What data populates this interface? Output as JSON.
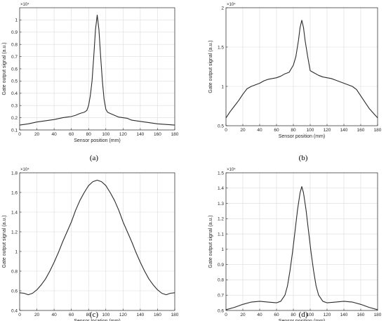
{
  "chart_data": [
    {
      "type": "line",
      "caption": "(a)",
      "xlabel": "Sensor position (mm)",
      "ylabel": "Gate output signal (a.u.)",
      "multiplier": "×10⁴",
      "xlim": [
        0,
        180
      ],
      "ylim": [
        0.1,
        1.1
      ],
      "xticks": [
        "0",
        "20",
        "40",
        "60",
        "80",
        "100",
        "120",
        "140",
        "160",
        "180"
      ],
      "yticks": [
        "0.1",
        "0.2",
        "0.3",
        "0.4",
        "0.5",
        "0.6",
        "0.7",
        "0.8",
        "0.9",
        "1"
      ],
      "grid": true,
      "x": [
        0,
        10,
        20,
        30,
        40,
        50,
        55,
        60,
        65,
        70,
        75,
        78,
        80,
        82,
        84,
        86,
        88,
        90,
        92,
        94,
        96,
        98,
        100,
        102,
        105,
        110,
        115,
        120,
        125,
        130,
        140,
        150,
        160,
        170,
        180
      ],
      "y": [
        0.14,
        0.15,
        0.165,
        0.175,
        0.185,
        0.2,
        0.205,
        0.21,
        0.22,
        0.235,
        0.245,
        0.26,
        0.3,
        0.38,
        0.5,
        0.7,
        0.92,
        1.04,
        0.92,
        0.7,
        0.5,
        0.35,
        0.27,
        0.245,
        0.235,
        0.22,
        0.205,
        0.2,
        0.195,
        0.18,
        0.17,
        0.16,
        0.15,
        0.145,
        0.14
      ]
    },
    {
      "type": "line",
      "caption": "(b)",
      "xlabel": "Sensor position (mm)",
      "ylabel": "Gate output signal (a.u.)",
      "multiplier": "×10⁴",
      "xlim": [
        0,
        180
      ],
      "ylim": [
        0.5,
        2
      ],
      "xticks": [
        "0",
        "20",
        "40",
        "60",
        "80",
        "100",
        "120",
        "140",
        "160",
        "180"
      ],
      "yticks": [
        "0.5",
        "1",
        "1.5",
        "2"
      ],
      "grid": true,
      "x": [
        0,
        5,
        10,
        15,
        20,
        25,
        30,
        35,
        40,
        45,
        50,
        55,
        60,
        65,
        70,
        75,
        80,
        83,
        86,
        88,
        90,
        92,
        94,
        97,
        100,
        105,
        110,
        115,
        120,
        125,
        130,
        135,
        140,
        145,
        150,
        155,
        160,
        165,
        170,
        175,
        180
      ],
      "y": [
        0.6,
        0.68,
        0.75,
        0.82,
        0.9,
        0.97,
        1.0,
        1.02,
        1.04,
        1.07,
        1.09,
        1.1,
        1.11,
        1.13,
        1.16,
        1.18,
        1.27,
        1.38,
        1.58,
        1.75,
        1.84,
        1.75,
        1.58,
        1.38,
        1.2,
        1.17,
        1.14,
        1.12,
        1.11,
        1.1,
        1.08,
        1.06,
        1.04,
        1.02,
        1.0,
        0.96,
        0.88,
        0.8,
        0.72,
        0.66,
        0.6
      ]
    },
    {
      "type": "line",
      "caption": "(c)",
      "xlabel": "Sensor location (mm)",
      "ylabel": "Gate output signal (a.u.)",
      "multiplier": "×10⁴",
      "xlim": [
        0,
        180
      ],
      "ylim": [
        0.4,
        1.8
      ],
      "xticks": [
        "0",
        "20",
        "40",
        "60",
        "80",
        "100",
        "120",
        "140",
        "160",
        "180"
      ],
      "yticks": [
        "0.4",
        "0.6",
        "0.8",
        "1",
        "1.2",
        "1.4",
        "1.6",
        "1.8"
      ],
      "grid": true,
      "x": [
        0,
        5,
        10,
        15,
        20,
        25,
        30,
        35,
        40,
        45,
        50,
        55,
        60,
        65,
        70,
        75,
        80,
        85,
        90,
        95,
        100,
        105,
        110,
        115,
        120,
        125,
        130,
        135,
        140,
        145,
        150,
        155,
        160,
        165,
        170,
        175,
        180
      ],
      "y": [
        0.58,
        0.575,
        0.56,
        0.575,
        0.61,
        0.66,
        0.72,
        0.8,
        0.89,
        0.99,
        1.1,
        1.2,
        1.3,
        1.42,
        1.52,
        1.6,
        1.67,
        1.71,
        1.725,
        1.71,
        1.67,
        1.6,
        1.52,
        1.42,
        1.3,
        1.2,
        1.1,
        0.99,
        0.89,
        0.8,
        0.72,
        0.66,
        0.61,
        0.575,
        0.56,
        0.575,
        0.58
      ]
    },
    {
      "type": "line",
      "caption": "(d)",
      "xlabel": "Sensor position (mm)",
      "ylabel": "Gate output signal (a.u.)",
      "multiplier": "×10⁴",
      "xlim": [
        0,
        180
      ],
      "ylim": [
        0.6,
        1.5
      ],
      "xticks": [
        "0",
        "20",
        "40",
        "60",
        "80",
        "100",
        "120",
        "140",
        "160",
        "180"
      ],
      "yticks": [
        "0.6",
        "0.7",
        "0.8",
        "0.9",
        "1",
        "1.1",
        "1.2",
        "1.3",
        "1.4",
        "1.5"
      ],
      "grid": true,
      "x": [
        0,
        10,
        20,
        30,
        40,
        50,
        60,
        65,
        70,
        73,
        76,
        79,
        82,
        85,
        88,
        90,
        92,
        95,
        98,
        101,
        104,
        107,
        110,
        115,
        120,
        130,
        140,
        150,
        160,
        170,
        180
      ],
      "y": [
        0.605,
        0.62,
        0.64,
        0.655,
        0.66,
        0.655,
        0.65,
        0.66,
        0.7,
        0.76,
        0.86,
        0.98,
        1.12,
        1.26,
        1.37,
        1.41,
        1.37,
        1.26,
        1.12,
        0.98,
        0.86,
        0.76,
        0.7,
        0.66,
        0.65,
        0.655,
        0.66,
        0.655,
        0.64,
        0.62,
        0.605
      ]
    }
  ]
}
